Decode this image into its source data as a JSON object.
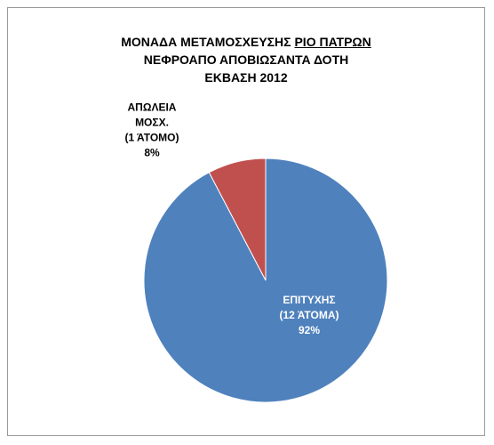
{
  "chart_data": {
    "type": "pie",
    "title": {
      "line1_prefix": "ΜΟΝΑΔΑ ΜΕΤΑΜΟΣΧΕΥΣΗΣ ",
      "line1_underlined": "ΡΙΟ ΠΑΤΡΩΝ",
      "line2": "ΝΕΦΡΟΑΠΟ ΑΠΟΒΙΩΣΑΝΤΑ ΔΟΤΗ",
      "line3": "ΕΚΒΑΣΗ 2012"
    },
    "slices": [
      {
        "label_lines": [
          "ΕΠΙΤΥΧΗΣ",
          "(12 ΆΤΟΜΑ)"
        ],
        "percent_label": "92%",
        "value": 12,
        "color": "#4f81bd",
        "label_color": "#ffffff"
      },
      {
        "label_lines": [
          "ΑΠΩΛΕΙΑ",
          "ΜΟΣΧ.",
          "(1 ΆΤΟΜΟ)"
        ],
        "percent_label": "8%",
        "value": 1,
        "color": "#c0504d",
        "label_color": "#000000"
      }
    ],
    "legend": "none"
  }
}
